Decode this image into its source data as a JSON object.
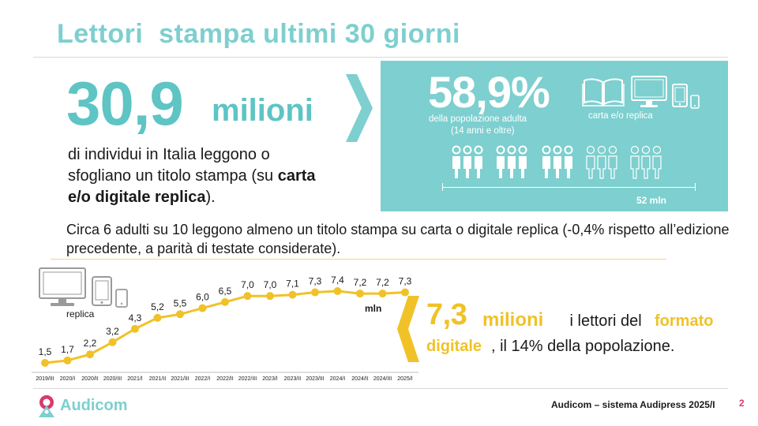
{
  "title": "Lettori  stampa ultimi 30 giorni",
  "headline": {
    "number": "30,9",
    "unit": "milioni",
    "desc_part1": "di individui in Italia leggono o sfogliano un titolo stampa (su ",
    "desc_bold": "carta e/o digitale replica",
    "desc_part2": ")."
  },
  "panel": {
    "percent": "58,9%",
    "subtitle_line1": "della popolazione adulta",
    "subtitle_line2": "(14 anni e oltre)",
    "format_label": "carta e/o replica",
    "population_label": "52 mln",
    "icons": [
      "book-icon",
      "monitor-icon",
      "tablet-icon",
      "phone-icon",
      "people-icon"
    ]
  },
  "summary": "Circa 6 adulti su 10 leggono almeno un titolo stampa su carta o digitale replica (-0,4% rispetto all’edizione precedente, a parità di testate considerate).",
  "chart_labels": {
    "replica": "replica",
    "unit": "mln"
  },
  "digital": {
    "number": "7,3",
    "unit": "milioni",
    "text1": " i lettori del ",
    "word1": "formato",
    "word2": "digitale",
    "text2": ", il 14% della popolazione."
  },
  "footer": {
    "logo": "Audicom",
    "source": "Audicom – sistema Audipress 2025/I",
    "page": "2"
  },
  "colors": {
    "teal": "#7ecfcf",
    "teal_dark": "#5ec4c4",
    "yellow": "#f0c228",
    "pink": "#d9396a"
  },
  "chart_data": {
    "type": "line",
    "categories": [
      "2019/III",
      "2020/I",
      "2020/II",
      "2020/III",
      "2021/I",
      "2021/II",
      "2021/III",
      "2022/I",
      "2022/II",
      "2022/III",
      "2023/I",
      "2023/II",
      "2023/III",
      "2024/I",
      "2024/II",
      "2024/III",
      "2025/I"
    ],
    "series": [
      {
        "values": [
          1.5,
          1.7,
          2.2,
          3.2,
          4.3,
          5.2,
          5.5,
          6.0,
          6.5,
          7.0,
          7.0,
          7.1,
          7.3,
          7.4,
          7.2,
          7.2,
          7.3
        ],
        "labels": [
          "1,5",
          "1,7",
          "2,2",
          "3,2",
          "4,3",
          "5,2",
          "5,5",
          "6,0",
          "6,5",
          "7,0",
          "7,0",
          "7,1",
          "7,3",
          "7,4",
          "7,2",
          "7,2",
          "7,3"
        ],
        "color": "#f0c228"
      }
    ],
    "ylabel": "mln",
    "ylim": [
      0,
      8
    ],
    "grid": false,
    "legend": "none"
  }
}
